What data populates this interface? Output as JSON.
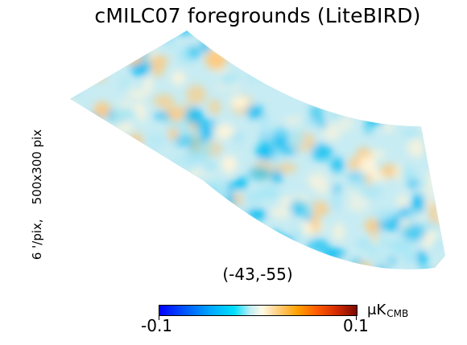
{
  "title": "cMILC07 foregrounds (LiteBIRD)",
  "side_label": {
    "resolution": "6 '/pix,",
    "size": "500x300 pix"
  },
  "center_coords": "(-43,-55)",
  "colorbar": {
    "min_label": "-0.1",
    "max_label": "0.1",
    "unit_prefix": "μK",
    "unit_sub": "CMB"
  },
  "colors": {
    "light_blue": "#a8e6f5",
    "deep_blue": "#00bdf2",
    "cream": "#fff4da",
    "orange": "#ffc87a"
  }
}
